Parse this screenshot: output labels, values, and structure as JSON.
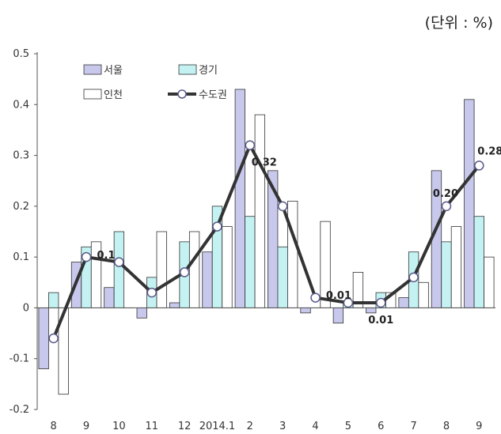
{
  "unit_label": "(단위 : %)",
  "chart_data": {
    "type": "bar",
    "categories": [
      "8",
      "9",
      "10",
      "11",
      "12",
      "2014.1",
      "2",
      "3",
      "4",
      "5",
      "6",
      "7",
      "8",
      "9"
    ],
    "ylim": [
      -0.2,
      0.5
    ],
    "yticks": [
      "-0.2",
      "-0.1",
      "0",
      "0.1",
      "0.2",
      "0.3",
      "0.4",
      "0.5"
    ],
    "series": [
      {
        "name": "서울",
        "kind": "bar",
        "color": "#c8c8ec",
        "values": [
          -0.12,
          0.09,
          0.04,
          -0.02,
          0.01,
          0.11,
          0.43,
          0.27,
          -0.01,
          -0.03,
          -0.01,
          0.02,
          0.27,
          0.41
        ]
      },
      {
        "name": "경기",
        "kind": "bar",
        "color": "#c4f2f2",
        "values": [
          0.03,
          0.12,
          0.15,
          0.06,
          0.13,
          0.2,
          0.18,
          0.12,
          0.0,
          0.01,
          0.03,
          0.11,
          0.13,
          0.18
        ]
      },
      {
        "name": "인천",
        "kind": "bar",
        "color": "#ffffff",
        "values": [
          -0.17,
          0.13,
          0.0,
          0.15,
          0.15,
          0.16,
          0.38,
          0.21,
          0.17,
          0.07,
          0.03,
          0.05,
          0.16,
          0.1
        ]
      },
      {
        "name": "수도권",
        "kind": "line",
        "color": "#333333",
        "values": [
          -0.06,
          0.1,
          0.09,
          0.03,
          0.07,
          0.16,
          0.32,
          0.2,
          0.02,
          0.01,
          0.01,
          0.06,
          0.2,
          0.28
        ]
      }
    ],
    "data_labels": [
      {
        "index": 1,
        "text": "0.1"
      },
      {
        "index": 6,
        "text": "0.32"
      },
      {
        "index": 9,
        "text": "0.01"
      },
      {
        "index": 10,
        "text": "0.01"
      },
      {
        "index": 12,
        "text": "0.20"
      },
      {
        "index": 13,
        "text": "0.28"
      }
    ],
    "legend_position": "top-left"
  }
}
